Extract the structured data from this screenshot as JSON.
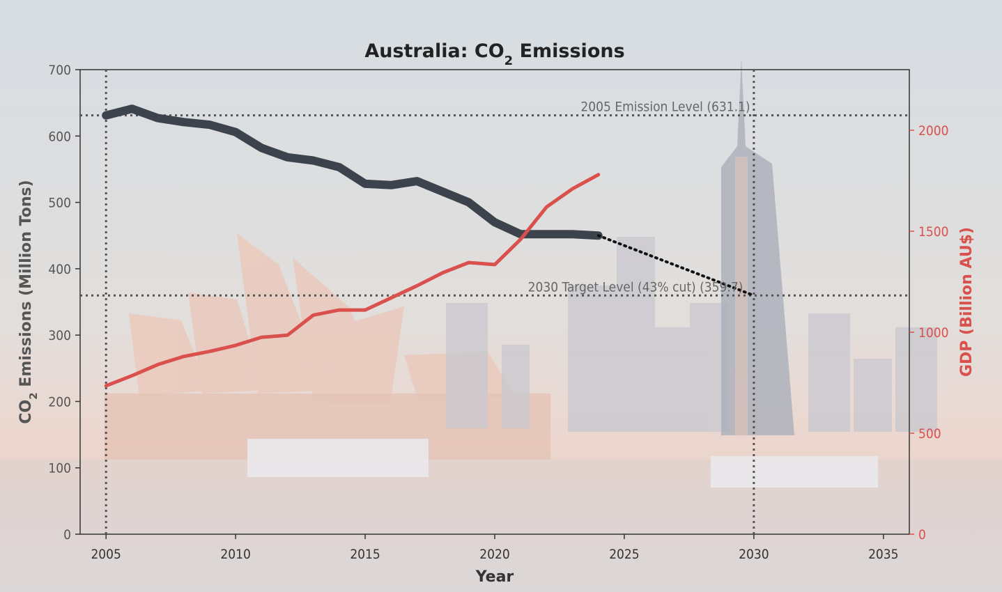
{
  "chart_data": {
    "type": "line",
    "title_main": "Australia: CO",
    "title_sub": "2",
    "title_tail": " Emissions",
    "xlabel": "Year",
    "ylabel_left_main": "CO",
    "ylabel_left_sub": "2",
    "ylabel_left_tail": " Emissions (Million Tons)",
    "ylabel_right": "GDP (Billion AU$)",
    "xlim": [
      2004,
      2036
    ],
    "ylim_left": [
      0,
      700
    ],
    "ylim_right": [
      0,
      2300
    ],
    "x_ticks": [
      2005,
      2010,
      2015,
      2020,
      2025,
      2030,
      2035
    ],
    "y_ticks_left": [
      0,
      100,
      200,
      300,
      400,
      500,
      600,
      700
    ],
    "y_ticks_right": [
      0,
      500,
      1000,
      1500,
      2000
    ],
    "grid": false,
    "series": [
      {
        "axis": "left",
        "color": "#3d434d",
        "x": [
          2005,
          2006,
          2007,
          2008,
          2009,
          2010,
          2011,
          2012,
          2013,
          2014,
          2015,
          2016,
          2017,
          2018,
          2019,
          2020,
          2021,
          2022,
          2023,
          2024
        ],
        "values": [
          631,
          641,
          627,
          621,
          617,
          606,
          582,
          568,
          563,
          553,
          528,
          526,
          532,
          516,
          500,
          470,
          452,
          452,
          452,
          450
        ]
      },
      {
        "axis": "right",
        "color": "#d9504c",
        "x": [
          2005,
          2006,
          2007,
          2008,
          2009,
          2010,
          2011,
          2012,
          2013,
          2014,
          2015,
          2016,
          2017,
          2018,
          2019,
          2020,
          2021,
          2022,
          2023,
          2024
        ],
        "values": [
          735,
          785,
          840,
          880,
          905,
          935,
          975,
          985,
          1085,
          1110,
          1110,
          1170,
          1230,
          1295,
          1345,
          1335,
          1460,
          1620,
          1710,
          1780
        ]
      },
      {
        "axis": "left",
        "style": "dotted",
        "color": "#111111",
        "x": [
          2024,
          2030
        ],
        "values": [
          450,
          359.7
        ]
      }
    ],
    "reference_lines": [
      {
        "orientation": "horizontal",
        "axis": "left",
        "value": 631.1,
        "label": "2005 Emission Level (631.1)"
      },
      {
        "orientation": "horizontal",
        "axis": "left",
        "value": 359.7,
        "label": "2030 Target Level (43% cut) (359.7)"
      },
      {
        "orientation": "vertical",
        "value": 2005
      },
      {
        "orientation": "vertical",
        "value": 2030
      }
    ],
    "colors": {
      "right_axis": "#d9504c",
      "left_axis": "#555555",
      "reference": "#555555"
    }
  }
}
